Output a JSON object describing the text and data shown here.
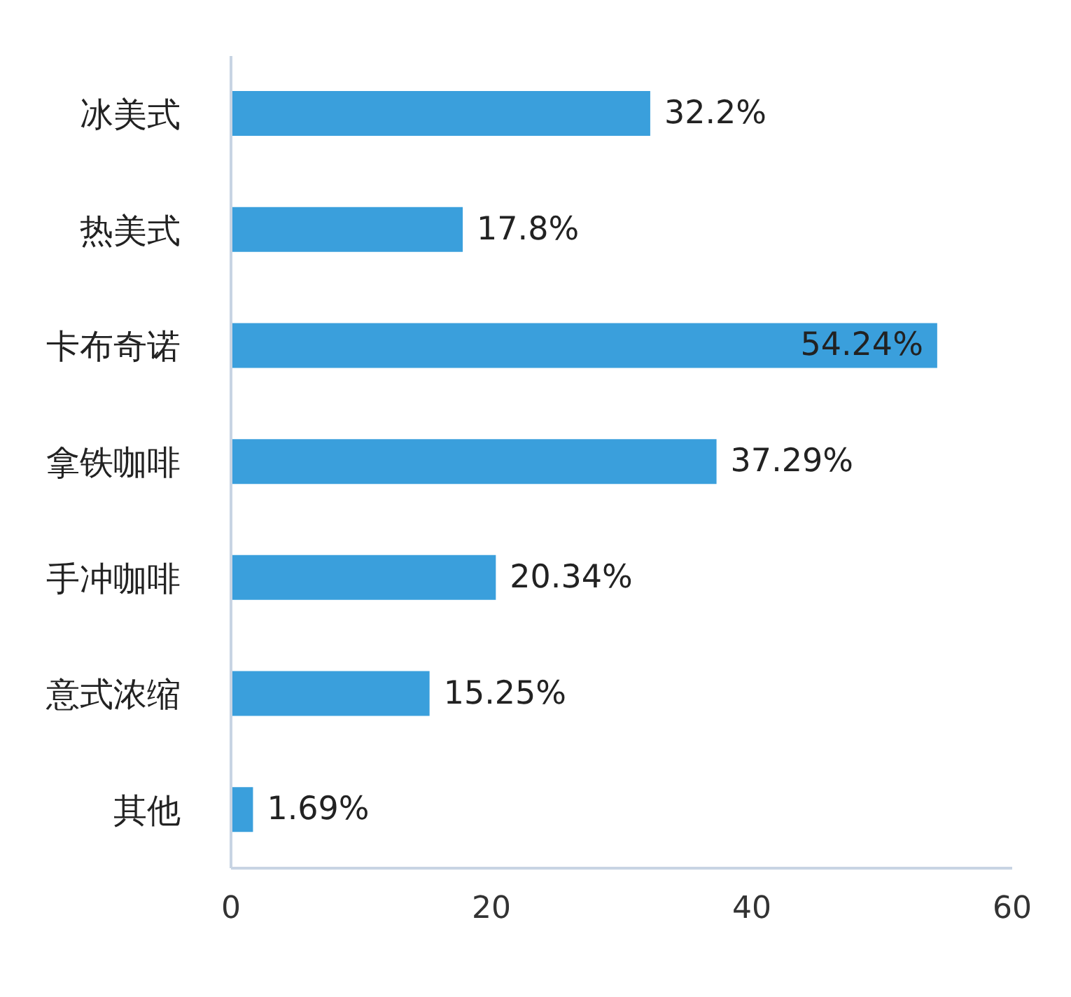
{
  "chart_data": {
    "type": "bar",
    "orientation": "horizontal",
    "categories": [
      "冰美式",
      "热美式",
      "卡布奇诺",
      "拿铁咖啡",
      "手冲咖啡",
      "意式浓缩",
      "其他"
    ],
    "values": [
      32.2,
      17.8,
      54.24,
      37.29,
      20.34,
      15.25,
      1.69
    ],
    "value_labels": [
      "32.2%",
      "17.8%",
      "54.24%",
      "37.29%",
      "20.34%",
      "15.25%",
      "1.69%"
    ],
    "color": "#3a9fdc",
    "xlim": [
      0,
      60
    ],
    "xticks": [
      0,
      20,
      40,
      60
    ],
    "grid": false,
    "legend": false
  }
}
